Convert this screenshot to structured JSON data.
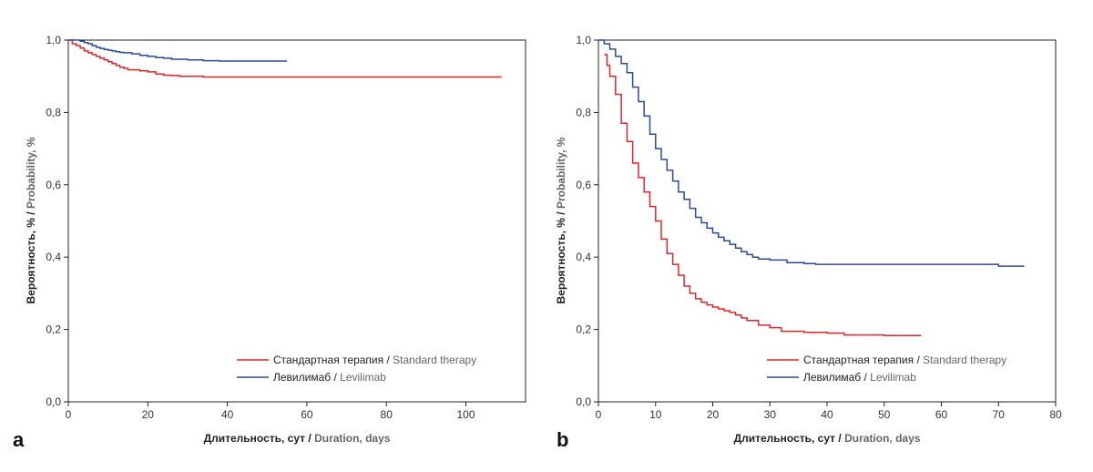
{
  "chart_data": [
    {
      "panel": "a",
      "type": "line",
      "xlabel_ru": "Длительность, сут",
      "xlabel_en": "Duration, days",
      "ylabel_ru": "Вероятность, %",
      "ylabel_en": "Probability, %",
      "xlim": [
        0,
        115
      ],
      "ylim": [
        0,
        1
      ],
      "xticks": [
        "0",
        "20",
        "40",
        "60",
        "80",
        "100"
      ],
      "xtick_values": [
        0,
        20,
        40,
        60,
        80,
        100
      ],
      "yticks": [
        "0,0",
        "0,2",
        "0,4",
        "0,6",
        "0,8",
        "1,0"
      ],
      "ytick_values": [
        0,
        0.2,
        0.4,
        0.6,
        0.8,
        1.0
      ],
      "legend_position": "bottom-right",
      "series": [
        {
          "name_ru": "Стандартная терапия",
          "name_en": "Standard therapy",
          "color": "#e0262b",
          "x": [
            0,
            1,
            2,
            3,
            4,
            5,
            6,
            7,
            8,
            9,
            10,
            11,
            12,
            13,
            14,
            15,
            16,
            18,
            20,
            22,
            24,
            26,
            28,
            34,
            40,
            60,
            109
          ],
          "y": [
            1.0,
            0.99,
            0.985,
            0.978,
            0.97,
            0.965,
            0.96,
            0.955,
            0.95,
            0.945,
            0.94,
            0.935,
            0.93,
            0.925,
            0.922,
            0.918,
            0.918,
            0.915,
            0.912,
            0.906,
            0.903,
            0.902,
            0.9,
            0.898,
            0.898,
            0.898,
            0.898
          ]
        },
        {
          "name_ru": "Левилимаб",
          "name_en": "Levilimab",
          "color": "#2b4a9a",
          "x": [
            0,
            3,
            4,
            5,
            6,
            7,
            8,
            9,
            10,
            11,
            12,
            13,
            14,
            16,
            18,
            20,
            22,
            24,
            26,
            30,
            34,
            38,
            40,
            55
          ],
          "y": [
            1.0,
            0.997,
            0.993,
            0.99,
            0.985,
            0.98,
            0.977,
            0.974,
            0.972,
            0.97,
            0.968,
            0.966,
            0.965,
            0.962,
            0.958,
            0.955,
            0.952,
            0.95,
            0.947,
            0.945,
            0.943,
            0.942,
            0.942,
            0.942
          ]
        }
      ]
    },
    {
      "panel": "b",
      "type": "line",
      "xlabel_ru": "Длительность, сут",
      "xlabel_en": "Duration, days",
      "ylabel_ru": "Вероятность, %",
      "ylabel_en": "Probability, %",
      "xlim": [
        0,
        80
      ],
      "ylim": [
        0,
        1
      ],
      "xticks": [
        "0",
        "10",
        "20",
        "30",
        "40",
        "50",
        "60",
        "70",
        "80"
      ],
      "xtick_values": [
        0,
        10,
        20,
        30,
        40,
        50,
        60,
        70,
        80
      ],
      "yticks": [
        "0,0",
        "0,2",
        "0,4",
        "0,6",
        "0,8",
        "1,0"
      ],
      "ytick_values": [
        0,
        0.2,
        0.4,
        0.6,
        0.8,
        1.0
      ],
      "legend_position": "bottom-right",
      "series": [
        {
          "name_ru": "Стандартная терапия",
          "name_en": "Standard therapy",
          "color": "#e0262b",
          "x": [
            1,
            1.5,
            2,
            3,
            4,
            5,
            6,
            7,
            8,
            9,
            10,
            11,
            12,
            13,
            14,
            15,
            16,
            17,
            18,
            19,
            20,
            21,
            22,
            23,
            24,
            25,
            26,
            28,
            30,
            32,
            36,
            40,
            43,
            50,
            56.5
          ],
          "y": [
            0.96,
            0.93,
            0.9,
            0.85,
            0.77,
            0.72,
            0.66,
            0.62,
            0.58,
            0.54,
            0.5,
            0.45,
            0.41,
            0.38,
            0.35,
            0.32,
            0.3,
            0.285,
            0.275,
            0.268,
            0.262,
            0.257,
            0.252,
            0.247,
            0.24,
            0.232,
            0.225,
            0.212,
            0.205,
            0.195,
            0.192,
            0.19,
            0.185,
            0.183,
            0.183
          ]
        },
        {
          "name_ru": "Левилимаб",
          "name_en": "Levilimab",
          "color": "#2b4a9a",
          "x": [
            0,
            1,
            2,
            3,
            4,
            5,
            6,
            7,
            8,
            9,
            10,
            11,
            12,
            13,
            14,
            15,
            16,
            17,
            18,
            19,
            20,
            21,
            22,
            23,
            24,
            25,
            26,
            27,
            28,
            30,
            33,
            36,
            38,
            40,
            50,
            60,
            70,
            74.5
          ],
          "y": [
            1.0,
            0.99,
            0.975,
            0.955,
            0.935,
            0.91,
            0.87,
            0.83,
            0.79,
            0.74,
            0.7,
            0.67,
            0.64,
            0.61,
            0.58,
            0.56,
            0.535,
            0.51,
            0.495,
            0.48,
            0.467,
            0.455,
            0.445,
            0.435,
            0.425,
            0.415,
            0.407,
            0.4,
            0.395,
            0.392,
            0.385,
            0.382,
            0.38,
            0.38,
            0.38,
            0.38,
            0.375,
            0.375
          ]
        }
      ]
    }
  ],
  "labels": {
    "panel_a": "a",
    "panel_b": "b",
    "sep": " / "
  }
}
